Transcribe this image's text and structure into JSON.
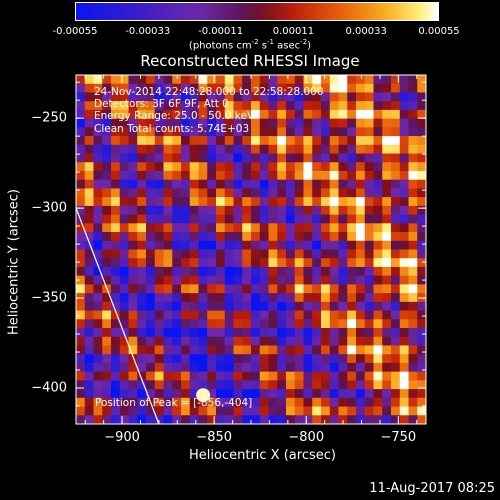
{
  "colorbar": {
    "ticks": [
      "-0.00055",
      "-0.00033",
      "-0.00011",
      "0.00011",
      "0.00033",
      "0.00055"
    ],
    "units_base": "(photons cm",
    "units_exp1": "-2",
    "units_mid1": " s",
    "units_exp2": "-1",
    "units_mid2": " asec",
    "units_exp3": "-2",
    "units_end": ")"
  },
  "chart_data": {
    "type": "heatmap",
    "title": "Reconstructed RHESSI Image",
    "xlabel": "Heliocentric X (arcsec)",
    "ylabel": "Heliocentric Y (arcsec)",
    "xlim": [
      -925,
      -735
    ],
    "ylim": [
      -420,
      -226
    ],
    "xticks": [
      -900,
      -850,
      -800,
      -750
    ],
    "yticks": [
      -250,
      -300,
      -350,
      -400
    ],
    "colormap": "RHESSI color table 5 (blue-purple-red-orange-yellow-white)",
    "color_range": [
      -0.00055,
      0.00055
    ],
    "peak": {
      "x": -856,
      "y": -404
    },
    "limb_line": {
      "x": [
        -925,
        -880
      ],
      "y": [
        -300,
        -420
      ]
    },
    "info": [
      "24-Nov-2014 22:48:28.000 to 22:58:28.000",
      "Detectors: 3F 6F 9F, Att 0",
      "Energy Range: 25.0 - 50.0 keV",
      "Clean    Total counts: 5.74E+03"
    ],
    "peak_label": "Position of Peak = [-856,-404]"
  },
  "timestamp": "11-Aug-2017 08:25"
}
